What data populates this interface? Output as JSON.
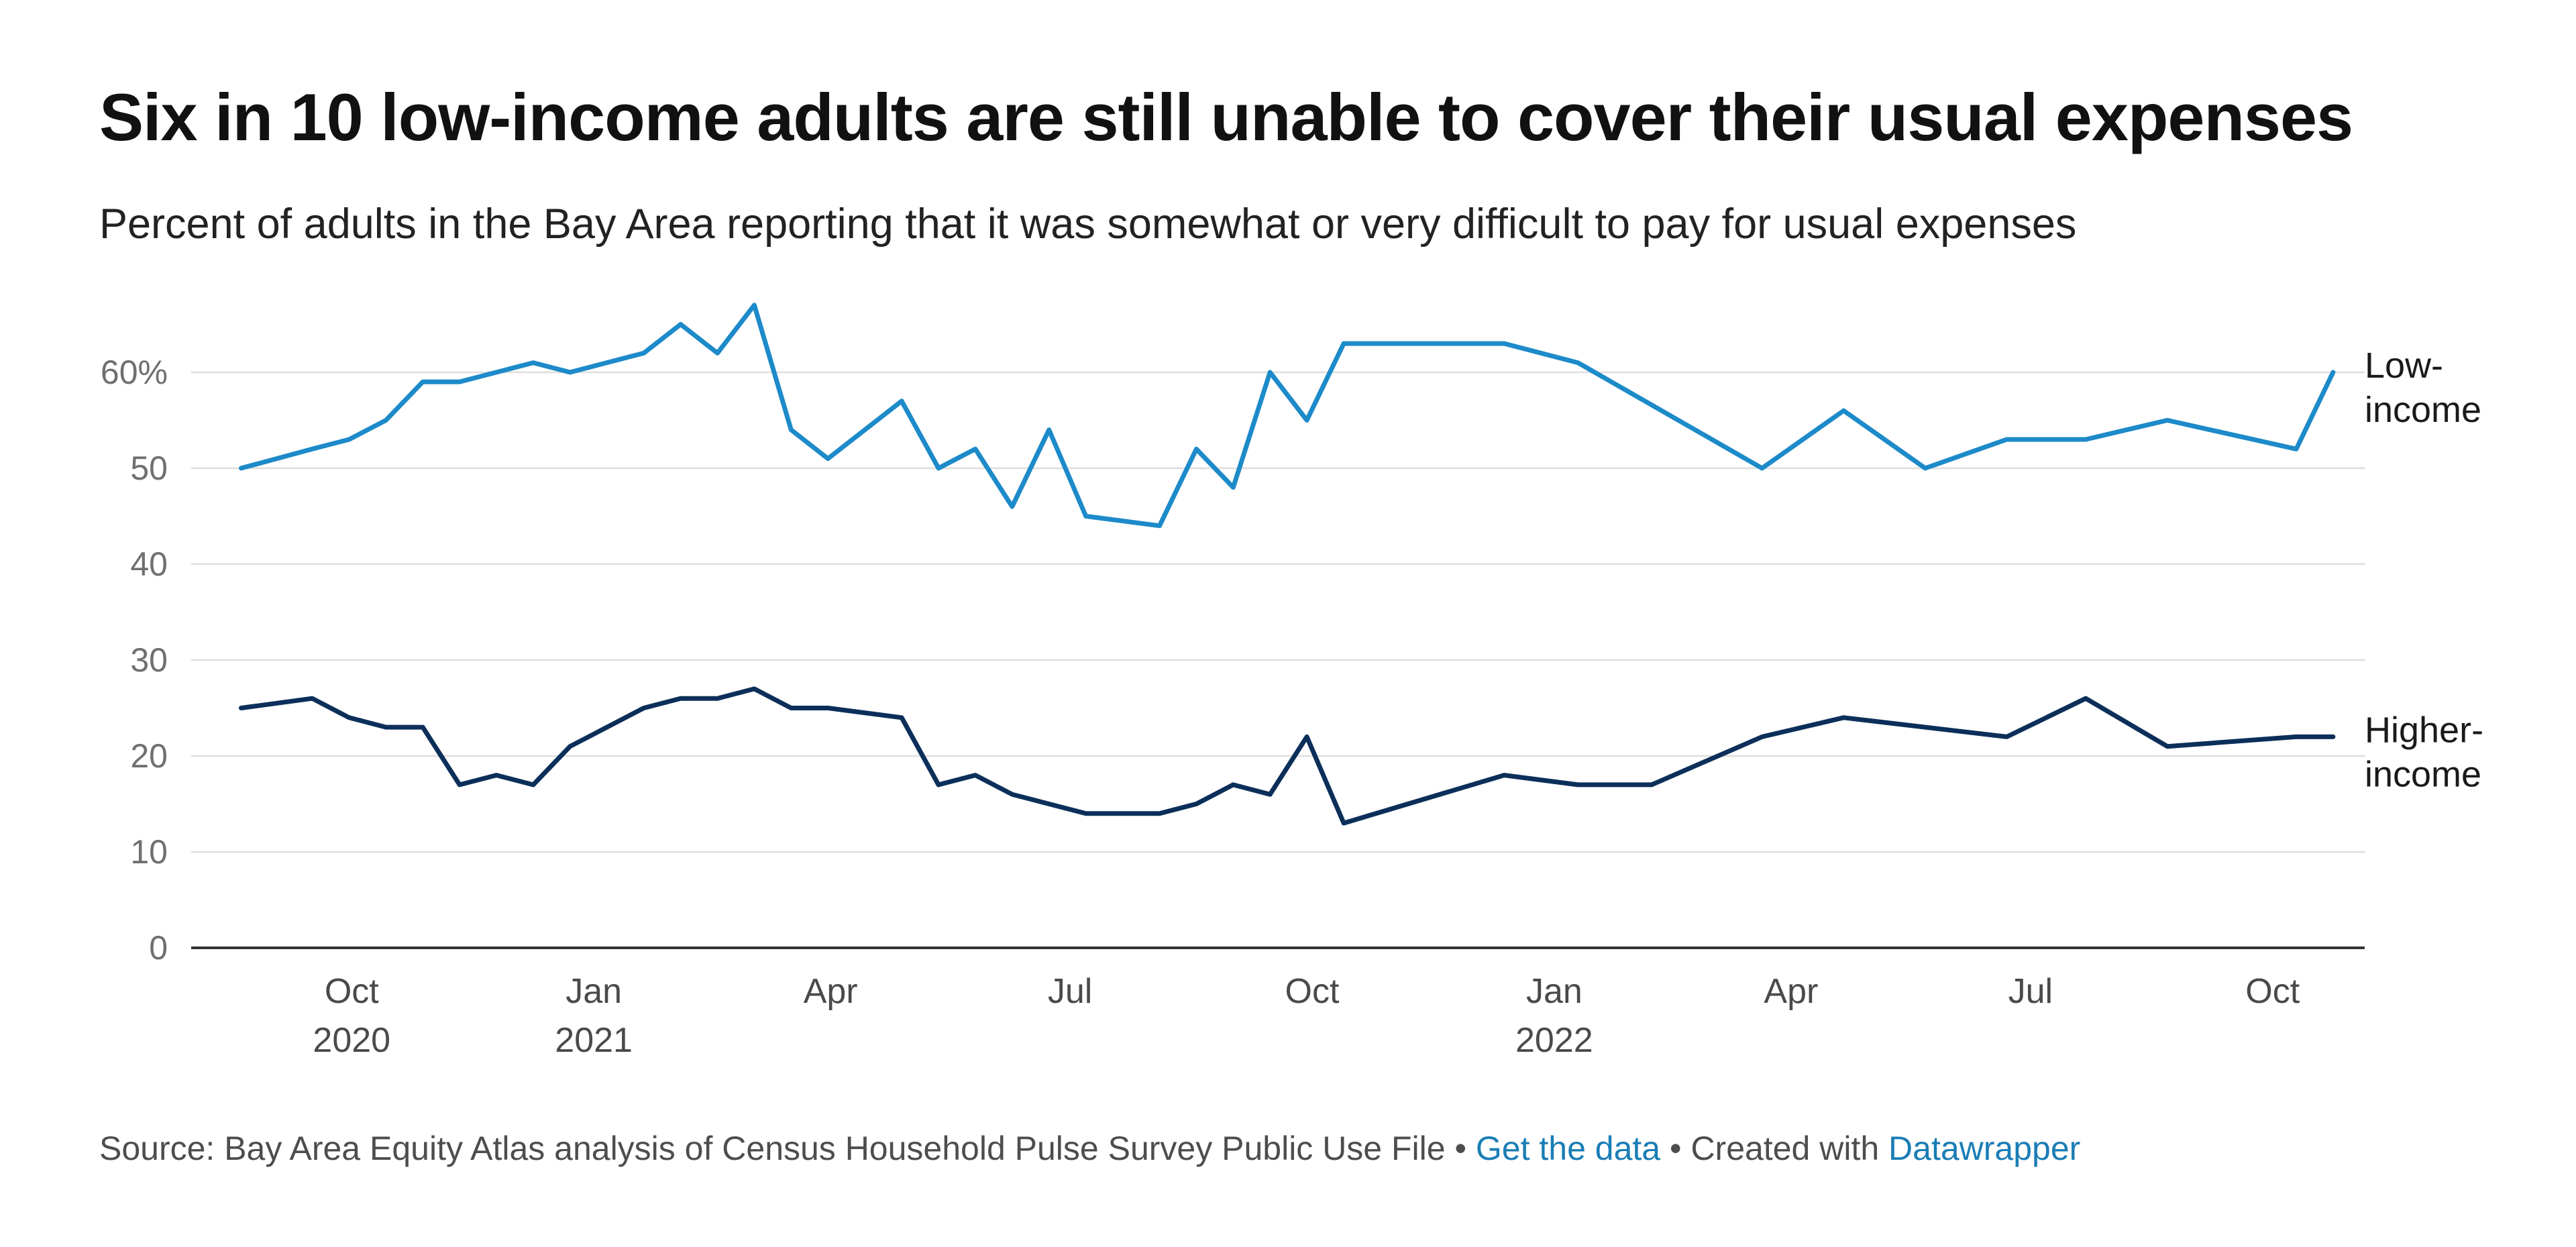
{
  "chart_data": {
    "type": "line",
    "title": "Six in 10 low-income adults are still unable to cover their usual expenses",
    "subtitle": "Percent of adults in the Bay Area reporting that it was somewhat or very difficult to pay for usual expenses",
    "ylim": [
      0,
      70
    ],
    "yticks": [
      {
        "value": 0,
        "label": "0"
      },
      {
        "value": 10,
        "label": "10"
      },
      {
        "value": 20,
        "label": "20"
      },
      {
        "value": 30,
        "label": "30"
      },
      {
        "value": 40,
        "label": "40"
      },
      {
        "value": 50,
        "label": "50"
      },
      {
        "value": 60,
        "label": "60%"
      }
    ],
    "xlim": [
      "2020-08-01",
      "2022-11-05"
    ],
    "xticks": [
      {
        "date": "2020-10-01",
        "label": "Oct",
        "year": "2020"
      },
      {
        "date": "2021-01-01",
        "label": "Jan",
        "year": "2021"
      },
      {
        "date": "2021-04-01",
        "label": "Apr",
        "year": ""
      },
      {
        "date": "2021-07-01",
        "label": "Jul",
        "year": ""
      },
      {
        "date": "2021-10-01",
        "label": "Oct",
        "year": ""
      },
      {
        "date": "2022-01-01",
        "label": "Jan",
        "year": "2022"
      },
      {
        "date": "2022-04-01",
        "label": "Apr",
        "year": ""
      },
      {
        "date": "2022-07-01",
        "label": "Jul",
        "year": ""
      },
      {
        "date": "2022-10-01",
        "label": "Oct",
        "year": ""
      }
    ],
    "grid": true,
    "series": [
      {
        "name": "Low-income",
        "label_lines": [
          "Low-",
          "income"
        ],
        "color": "#1d8ac9",
        "points": [
          [
            "2020-08-20",
            50
          ],
          [
            "2020-09-16",
            52
          ],
          [
            "2020-09-30",
            53
          ],
          [
            "2020-10-14",
            55
          ],
          [
            "2020-10-28",
            59
          ],
          [
            "2020-11-11",
            59
          ],
          [
            "2020-11-25",
            60
          ],
          [
            "2020-12-09",
            61
          ],
          [
            "2020-12-23",
            60
          ],
          [
            "2021-01-20",
            62
          ],
          [
            "2021-02-03",
            65
          ],
          [
            "2021-02-17",
            62
          ],
          [
            "2021-03-03",
            67
          ],
          [
            "2021-03-17",
            54
          ],
          [
            "2021-03-31",
            51
          ],
          [
            "2021-04-28",
            57
          ],
          [
            "2021-05-12",
            50
          ],
          [
            "2021-05-26",
            52
          ],
          [
            "2021-06-09",
            46
          ],
          [
            "2021-06-23",
            54
          ],
          [
            "2021-07-07",
            45
          ],
          [
            "2021-08-04",
            44
          ],
          [
            "2021-08-18",
            52
          ],
          [
            "2021-09-01",
            48
          ],
          [
            "2021-09-15",
            60
          ],
          [
            "2021-09-29",
            55
          ],
          [
            "2021-10-13",
            63
          ],
          [
            "2021-12-13",
            63
          ],
          [
            "2022-01-10",
            61
          ],
          [
            "2022-03-21",
            50
          ],
          [
            "2022-04-21",
            56
          ],
          [
            "2022-05-22",
            50
          ],
          [
            "2022-06-22",
            53
          ],
          [
            "2022-07-22",
            53
          ],
          [
            "2022-08-22",
            55
          ],
          [
            "2022-10-10",
            52
          ],
          [
            "2022-10-24",
            60
          ]
        ]
      },
      {
        "name": "Higher-income",
        "label_lines": [
          "Higher-",
          "income"
        ],
        "color": "#0c2f5a",
        "points": [
          [
            "2020-08-20",
            25
          ],
          [
            "2020-09-16",
            26
          ],
          [
            "2020-09-30",
            24
          ],
          [
            "2020-10-14",
            23
          ],
          [
            "2020-10-28",
            23
          ],
          [
            "2020-11-11",
            17
          ],
          [
            "2020-11-25",
            18
          ],
          [
            "2020-12-09",
            17
          ],
          [
            "2020-12-23",
            21
          ],
          [
            "2021-01-20",
            25
          ],
          [
            "2021-02-03",
            26
          ],
          [
            "2021-02-17",
            26
          ],
          [
            "2021-03-03",
            27
          ],
          [
            "2021-03-17",
            25
          ],
          [
            "2021-03-31",
            25
          ],
          [
            "2021-04-28",
            24
          ],
          [
            "2021-05-12",
            17
          ],
          [
            "2021-05-26",
            18
          ],
          [
            "2021-06-09",
            16
          ],
          [
            "2021-06-23",
            15
          ],
          [
            "2021-07-07",
            14
          ],
          [
            "2021-08-04",
            14
          ],
          [
            "2021-08-18",
            15
          ],
          [
            "2021-09-01",
            17
          ],
          [
            "2021-09-15",
            16
          ],
          [
            "2021-09-29",
            22
          ],
          [
            "2021-10-13",
            13
          ],
          [
            "2021-12-13",
            18
          ],
          [
            "2022-01-10",
            17
          ],
          [
            "2022-02-07",
            17
          ],
          [
            "2022-03-21",
            22
          ],
          [
            "2022-04-21",
            24
          ],
          [
            "2022-05-22",
            23
          ],
          [
            "2022-06-22",
            22
          ],
          [
            "2022-07-22",
            26
          ],
          [
            "2022-08-22",
            21
          ],
          [
            "2022-10-10",
            22
          ],
          [
            "2022-10-24",
            22
          ]
        ]
      }
    ]
  },
  "footer": {
    "source_text": "Source: Bay Area Equity Atlas analysis of Census Household Pulse Survey Public Use File",
    "separator": "•",
    "data_link": "Get the data",
    "created_text": "Created with",
    "datawrapper_link": "Datawrapper"
  }
}
